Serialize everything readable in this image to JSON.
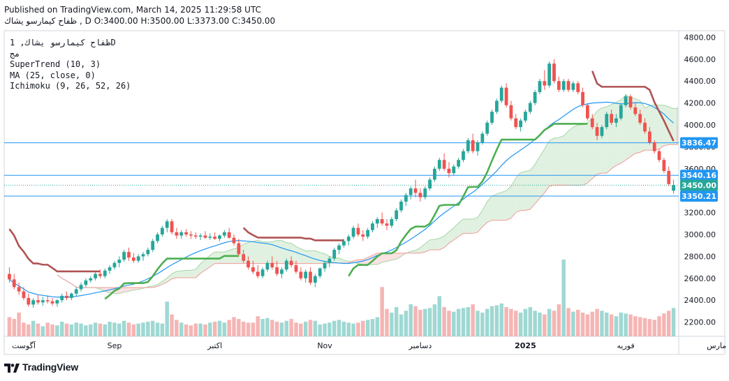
{
  "header": {
    "line1": "Published on TradingView.com, March 14, 2025 11:29:58 UTC",
    "line2": "ظفاح كيمارسو يشاك , D O:3400.00 H:3500.00 L:3373.00 C:3450.00"
  },
  "legend": {
    "symbol": "ظفاح كيمارسو يشاك, 1D",
    "exchange": "مج",
    "supertrend": "SuperTrend (10, 3)",
    "ma": "MA (25, close, 0)",
    "ichimoku": "Ichimoku (9, 26, 52, 26)"
  },
  "footer": {
    "logo_text": "TradingView"
  },
  "colors": {
    "up": "#26a69a",
    "down": "#ef5350",
    "supertrend_up": "#4caf50",
    "supertrend_down": "#b05353",
    "ma": "#2196f3",
    "cloud_bull": "#c8e6c9",
    "cloud_bear": "#f8c8c8",
    "hline": "#2196f3",
    "axis_label": "#2196f3",
    "price_label_green": "#26a69a"
  },
  "chart_data": {
    "type": "candlestick",
    "title": "ظفاح كيمارسو يشاك, 1D",
    "yaxis_ticks": [
      2200,
      2400,
      2600,
      2800,
      3000,
      3200,
      3400,
      3600,
      3800,
      4000,
      4200,
      4400,
      4600,
      4800
    ],
    "yaxis_tick_labels": [
      "2200.00",
      "2400.00",
      "2600.00",
      "2800.00",
      "3000.00",
      "3200.00",
      "3400.00",
      "3600.00",
      "3800.00",
      "4000.00",
      "4200.00",
      "4400.00",
      "4600.00",
      "4800.00"
    ],
    "ylim": [
      2070,
      4860
    ],
    "xaxis_labels": [
      {
        "label": "آگوست",
        "index": 3
      },
      {
        "label": "Sep",
        "index": 22
      },
      {
        "label": "اكتبر",
        "index": 43
      },
      {
        "label": "Nov",
        "index": 66
      },
      {
        "label": "دسامبر",
        "index": 86
      },
      {
        "label": "2025",
        "index": 108
      },
      {
        "label": "فوریه",
        "index": 129
      },
      {
        "label": "مارس",
        "index": 148
      }
    ],
    "price_lines": [
      {
        "value": 3836.47,
        "label": "3836.47"
      },
      {
        "value": 3540.16,
        "label": "3540.16"
      },
      {
        "value": 3350.21,
        "label": "3350.21"
      }
    ],
    "last_price": {
      "value": 3450.0,
      "label": "3450.00"
    },
    "ohlc": [
      [
        2640,
        2700,
        2560,
        2590
      ],
      [
        2590,
        2640,
        2500,
        2520
      ],
      [
        2520,
        2560,
        2450,
        2480
      ],
      [
        2480,
        2520,
        2400,
        2420
      ],
      [
        2420,
        2460,
        2340,
        2360
      ],
      [
        2360,
        2420,
        2330,
        2400
      ],
      [
        2400,
        2450,
        2360,
        2380
      ],
      [
        2380,
        2430,
        2350,
        2400
      ],
      [
        2400,
        2440,
        2370,
        2390
      ],
      [
        2390,
        2420,
        2350,
        2370
      ],
      [
        2370,
        2410,
        2340,
        2400
      ],
      [
        2400,
        2460,
        2380,
        2440
      ],
      [
        2440,
        2480,
        2400,
        2420
      ],
      [
        2420,
        2470,
        2400,
        2460
      ],
      [
        2460,
        2520,
        2440,
        2500
      ],
      [
        2500,
        2560,
        2480,
        2540
      ],
      [
        2540,
        2600,
        2520,
        2580
      ],
      [
        2580,
        2620,
        2560,
        2600
      ],
      [
        2600,
        2660,
        2580,
        2640
      ],
      [
        2640,
        2680,
        2600,
        2620
      ],
      [
        2620,
        2690,
        2600,
        2670
      ],
      [
        2670,
        2720,
        2640,
        2700
      ],
      [
        2700,
        2760,
        2680,
        2740
      ],
      [
        2740,
        2800,
        2700,
        2770
      ],
      [
        2770,
        2860,
        2750,
        2840
      ],
      [
        2840,
        2880,
        2760,
        2790
      ],
      [
        2790,
        2830,
        2740,
        2760
      ],
      [
        2760,
        2820,
        2740,
        2800
      ],
      [
        2800,
        2840,
        2760,
        2820
      ],
      [
        2820,
        2880,
        2800,
        2860
      ],
      [
        2860,
        2960,
        2840,
        2940
      ],
      [
        2940,
        3020,
        2920,
        3000
      ],
      [
        3000,
        3080,
        2980,
        3060
      ],
      [
        3060,
        3140,
        3020,
        3120
      ],
      [
        3120,
        3140,
        3000,
        3020
      ],
      [
        3020,
        3060,
        2960,
        2990
      ],
      [
        2990,
        3040,
        2960,
        3020
      ],
      [
        3020,
        3050,
        2980,
        3000
      ],
      [
        3000,
        3030,
        2960,
        2990
      ],
      [
        2990,
        3020,
        2960,
        2980
      ],
      [
        2980,
        3010,
        2950,
        2990
      ],
      [
        2990,
        3030,
        2960,
        2970
      ],
      [
        2970,
        3010,
        2950,
        2980
      ],
      [
        2980,
        3020,
        2950,
        2960
      ],
      [
        2960,
        3000,
        2940,
        2990
      ],
      [
        2990,
        3040,
        2970,
        3020
      ],
      [
        3020,
        3060,
        2960,
        2970
      ],
      [
        2970,
        3000,
        2900,
        2920
      ],
      [
        2920,
        2960,
        2800,
        2820
      ],
      [
        2820,
        2860,
        2740,
        2760
      ],
      [
        2760,
        2800,
        2680,
        2700
      ],
      [
        2700,
        2760,
        2640,
        2660
      ],
      [
        2660,
        2720,
        2600,
        2620
      ],
      [
        2620,
        2700,
        2600,
        2680
      ],
      [
        2680,
        2760,
        2660,
        2740
      ],
      [
        2740,
        2800,
        2680,
        2700
      ],
      [
        2700,
        2760,
        2620,
        2640
      ],
      [
        2640,
        2700,
        2600,
        2680
      ],
      [
        2680,
        2780,
        2660,
        2760
      ],
      [
        2760,
        2800,
        2700,
        2720
      ],
      [
        2720,
        2760,
        2640,
        2660
      ],
      [
        2660,
        2700,
        2580,
        2600
      ],
      [
        2600,
        2680,
        2560,
        2660
      ],
      [
        2660,
        2700,
        2540,
        2560
      ],
      [
        2560,
        2640,
        2520,
        2620
      ],
      [
        2620,
        2700,
        2600,
        2690
      ],
      [
        2690,
        2760,
        2660,
        2740
      ],
      [
        2740,
        2800,
        2700,
        2780
      ],
      [
        2780,
        2880,
        2760,
        2860
      ],
      [
        2860,
        2920,
        2820,
        2900
      ],
      [
        2900,
        2960,
        2880,
        2940
      ],
      [
        2940,
        3000,
        2900,
        2980
      ],
      [
        2980,
        3080,
        2960,
        3060
      ],
      [
        3060,
        3100,
        2980,
        3000
      ],
      [
        3000,
        3040,
        2940,
        2980
      ],
      [
        2980,
        3060,
        2960,
        3040
      ],
      [
        3040,
        3120,
        3020,
        3100
      ],
      [
        3100,
        3160,
        3060,
        3140
      ],
      [
        3140,
        3200,
        3080,
        3100
      ],
      [
        3100,
        3140,
        3040,
        3080
      ],
      [
        3080,
        3160,
        3060,
        3140
      ],
      [
        3140,
        3240,
        3120,
        3220
      ],
      [
        3220,
        3320,
        3200,
        3300
      ],
      [
        3300,
        3380,
        3260,
        3360
      ],
      [
        3360,
        3440,
        3320,
        3420
      ],
      [
        3420,
        3500,
        3340,
        3380
      ],
      [
        3380,
        3420,
        3300,
        3340
      ],
      [
        3340,
        3440,
        3320,
        3420
      ],
      [
        3420,
        3520,
        3400,
        3500
      ],
      [
        3500,
        3620,
        3480,
        3600
      ],
      [
        3600,
        3700,
        3580,
        3680
      ],
      [
        3680,
        3740,
        3580,
        3600
      ],
      [
        3600,
        3660,
        3520,
        3560
      ],
      [
        3560,
        3640,
        3540,
        3620
      ],
      [
        3620,
        3700,
        3600,
        3680
      ],
      [
        3680,
        3780,
        3660,
        3760
      ],
      [
        3760,
        3880,
        3740,
        3860
      ],
      [
        3860,
        3920,
        3740,
        3760
      ],
      [
        3760,
        3860,
        3720,
        3840
      ],
      [
        3840,
        3940,
        3820,
        3920
      ],
      [
        3920,
        4040,
        3900,
        4020
      ],
      [
        4020,
        4140,
        4000,
        4120
      ],
      [
        4120,
        4240,
        4100,
        4220
      ],
      [
        4220,
        4360,
        4200,
        4340
      ],
      [
        4340,
        4380,
        4160,
        4180
      ],
      [
        4180,
        4220,
        4040,
        4060
      ],
      [
        4060,
        4100,
        3960,
        3980
      ],
      [
        3980,
        4060,
        3940,
        4040
      ],
      [
        4040,
        4140,
        4020,
        4120
      ],
      [
        4120,
        4220,
        4100,
        4200
      ],
      [
        4200,
        4320,
        4180,
        4300
      ],
      [
        4300,
        4420,
        4280,
        4400
      ],
      [
        4400,
        4500,
        4320,
        4360
      ],
      [
        4360,
        4580,
        4340,
        4560
      ],
      [
        4560,
        4600,
        4380,
        4400
      ],
      [
        4400,
        4440,
        4300,
        4320
      ],
      [
        4320,
        4420,
        4300,
        4400
      ],
      [
        4400,
        4420,
        4300,
        4320
      ],
      [
        4320,
        4400,
        4300,
        4380
      ],
      [
        4380,
        4400,
        4280,
        4300
      ],
      [
        4300,
        4340,
        4160,
        4180
      ],
      [
        4180,
        4200,
        4040,
        4060
      ],
      [
        4060,
        4100,
        3960,
        3980
      ],
      [
        3980,
        4020,
        3860,
        3900
      ],
      [
        3900,
        4000,
        3880,
        3980
      ],
      [
        3980,
        4120,
        3960,
        4100
      ],
      [
        4100,
        4140,
        4000,
        4020
      ],
      [
        4020,
        4100,
        3980,
        4060
      ],
      [
        4060,
        4200,
        4040,
        4180
      ],
      [
        4180,
        4280,
        4160,
        4260
      ],
      [
        4260,
        4280,
        4140,
        4160
      ],
      [
        4160,
        4200,
        4080,
        4100
      ],
      [
        4100,
        4140,
        4000,
        4020
      ],
      [
        4020,
        4060,
        3920,
        3940
      ],
      [
        3940,
        3980,
        3820,
        3840
      ],
      [
        3840,
        3860,
        3740,
        3760
      ],
      [
        3760,
        3780,
        3660,
        3680
      ],
      [
        3680,
        3700,
        3560,
        3580
      ],
      [
        3580,
        3620,
        3440,
        3460
      ],
      [
        3400,
        3500,
        3373,
        3450
      ]
    ],
    "volume": [
      420,
      380,
      520,
      300,
      260,
      340,
      280,
      220,
      300,
      260,
      240,
      320,
      280,
      260,
      300,
      280,
      240,
      260,
      300,
      280,
      260,
      320,
      300,
      280,
      340,
      300,
      260,
      280,
      300,
      320,
      340,
      300,
      280,
      760,
      480,
      360,
      300,
      260,
      240,
      280,
      280,
      260,
      300,
      320,
      340,
      300,
      360,
      420,
      380,
      320,
      300,
      300,
      440,
      380,
      400,
      360,
      320,
      300,
      340,
      380,
      300,
      280,
      320,
      360,
      340,
      260,
      280,
      300,
      340,
      360,
      320,
      300,
      280,
      300,
      340,
      360,
      380,
      420,
      1080,
      600,
      520,
      640,
      480,
      560,
      700,
      660,
      580,
      600,
      620,
      700,
      880,
      640,
      560,
      540,
      600,
      620,
      640,
      700,
      560,
      520,
      600,
      660,
      680,
      720,
      640,
      600,
      560,
      520,
      600,
      640,
      560,
      520,
      480,
      600,
      560,
      700,
      1680,
      620,
      540,
      580,
      520,
      480,
      540,
      600,
      560,
      520,
      480,
      440,
      520,
      500,
      480,
      440,
      420,
      400,
      380,
      360,
      440,
      500,
      560,
      620
    ]
  }
}
